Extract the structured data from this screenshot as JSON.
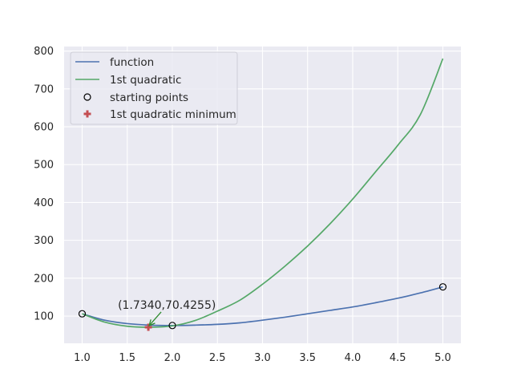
{
  "chart_data": {
    "type": "line",
    "xlim": [
      0.8,
      5.2
    ],
    "ylim": [
      28,
      812
    ],
    "xticks": [
      1.0,
      1.5,
      2.0,
      2.5,
      3.0,
      3.5,
      4.0,
      4.5,
      5.0
    ],
    "yticks": [
      100,
      200,
      300,
      400,
      500,
      600,
      700,
      800
    ],
    "grid": true,
    "legend_position": "top-left",
    "colors": {
      "background": "#eaeaf2",
      "grid": "#ffffff",
      "function": "#4c72b0",
      "quadratic": "#55a868",
      "minimum": "#c44e52",
      "points": "#000000"
    },
    "series": [
      {
        "name": "function",
        "color": "#4c72b0",
        "x": [
          1.0,
          1.25,
          1.5,
          1.75,
          2.0,
          2.25,
          2.5,
          2.75,
          3.0,
          3.25,
          3.5,
          3.75,
          4.0,
          4.25,
          4.5,
          4.75,
          5.0
        ],
        "y": [
          106,
          89,
          80,
          76,
          75,
          76,
          78,
          82,
          89,
          97,
          106,
          115,
          124,
          135,
          147,
          161,
          177
        ]
      },
      {
        "name": "1st quadratic",
        "color": "#55a868",
        "x": [
          1.0,
          1.25,
          1.5,
          1.734,
          2.0,
          2.25,
          2.5,
          2.75,
          3.0,
          3.25,
          3.5,
          3.75,
          4.0,
          4.25,
          4.5,
          4.75,
          5.0
        ],
        "y": [
          106,
          84,
          73,
          70.43,
          74,
          88,
          113,
          142,
          184,
          232,
          285,
          344,
          409,
          480,
          551,
          632,
          780
        ]
      }
    ],
    "starting_points": {
      "name": "starting points",
      "x": [
        1.0,
        2.0,
        5.0
      ],
      "y": [
        106,
        75,
        177
      ]
    },
    "minimum": {
      "name": "1st quadratic minimum",
      "x": 1.734,
      "y": 70.4255,
      "label": "(1.7340,70.4255)"
    },
    "legend": [
      "function",
      "1st quadratic",
      "starting points",
      "1st quadratic minimum"
    ]
  }
}
